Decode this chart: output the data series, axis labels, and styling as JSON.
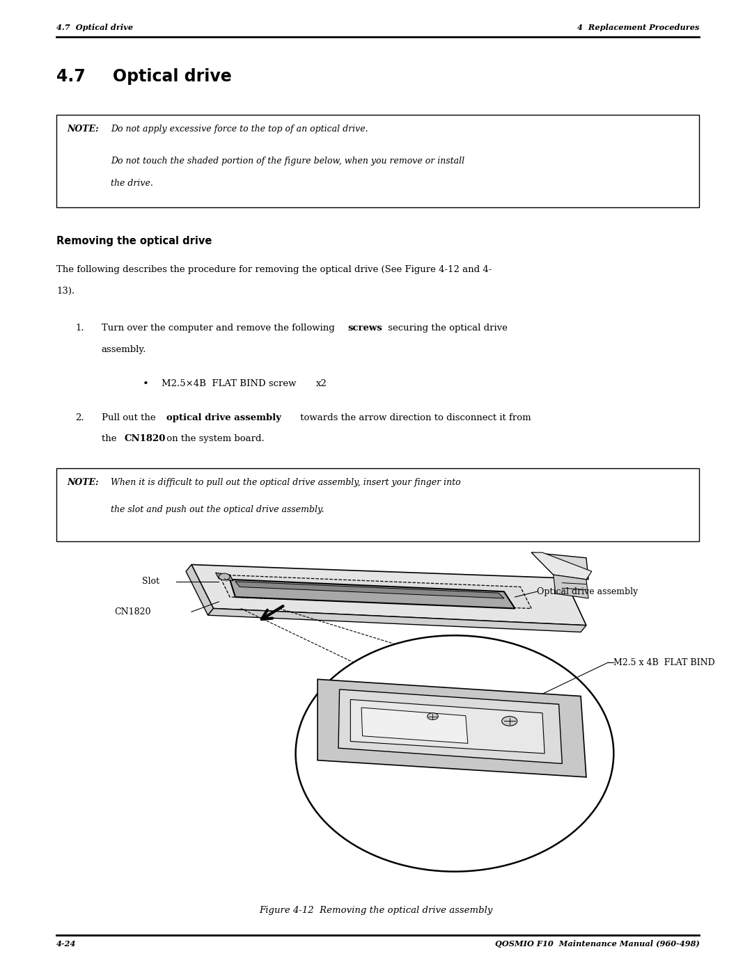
{
  "page_width": 10.8,
  "page_height": 13.97,
  "bg_color": "#ffffff",
  "header_left": "4.7  Optical drive",
  "header_right": "4  Replacement Procedures",
  "footer_left": "4-24",
  "footer_right": "QOSMIO F10  Maintenance Manual (960-498)",
  "section_num": "4.7",
  "section_name": "Optical drive",
  "note1_label": "NOTE:",
  "note1_line1": "Do not apply excessive force to the top of an optical drive.",
  "note1_line2": "Do not touch the shaded portion of the figure below, when you remove or install",
  "note1_line3": "the drive.",
  "subsection_title": "Removing the optical drive",
  "body_line1": "The following describes the procedure for removing the optical drive (See Figure 4-12 and 4-",
  "body_line2": "13).",
  "step1_pre": "Turn over the computer and remove the following ",
  "step1_bold": "screws",
  "step1_post": " securing the optical drive",
  "step1_line2": "assembly.",
  "bullet_main": "M2.5×4B  FLAT BIND screw",
  "bullet_x2": "x2",
  "step2_pre": "Pull out the ",
  "step2_bold1": "optical drive assembly",
  "step2_mid": " towards the arrow direction to disconnect it from",
  "step2_line2a": "the ",
  "step2_bold2": "CN1820",
  "step2_line2b": " on the system board.",
  "note2_label": "NOTE:",
  "note2_line1": "When it is difficult to pull out the optical drive assembly, insert your finger into",
  "note2_line2": "the slot and push out the optical drive assembly.",
  "fig_caption": "Figure 4-12  Removing the optical drive assembly",
  "label_slot": "Slot",
  "label_cn1820": "CN1820",
  "label_optical": "Optical drive assembly",
  "label_m25": "M2.5 x 4B  FLAT BIND"
}
